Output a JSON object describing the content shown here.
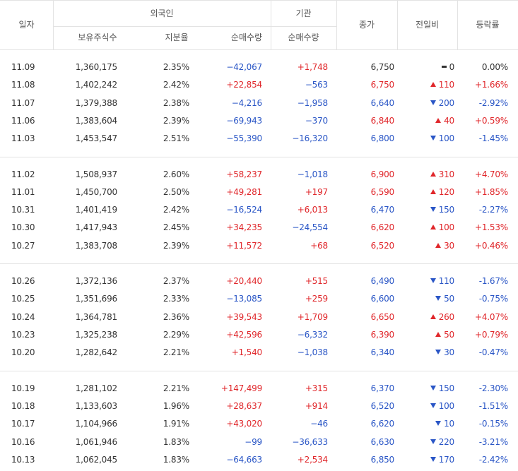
{
  "table": {
    "headers": {
      "date": "일자",
      "foreign": "외국인",
      "institution": "기관",
      "close": "종가",
      "change": "전일비",
      "rate": "등락률",
      "holdings": "보유주식수",
      "share": "지분율",
      "foreign_net": "순매수량",
      "inst_net": "순매수량"
    },
    "groups": [
      [
        {
          "cells": [
            "11.09",
            "1,360,175",
            "2.35%",
            "−42,067",
            "+1,748",
            "6,750",
            "0",
            "0.00%"
          ],
          "dir": "flat"
        },
        {
          "cells": [
            "11.08",
            "1,402,242",
            "2.42%",
            "+22,854",
            "−563",
            "6,750",
            "110",
            "+1.66%"
          ],
          "dir": "up"
        },
        {
          "cells": [
            "11.07",
            "1,379,388",
            "2.38%",
            "−4,216",
            "−1,958",
            "6,640",
            "200",
            "-2.92%"
          ],
          "dir": "down"
        },
        {
          "cells": [
            "11.06",
            "1,383,604",
            "2.39%",
            "−69,943",
            "−370",
            "6,840",
            "40",
            "+0.59%"
          ],
          "dir": "up"
        },
        {
          "cells": [
            "11.03",
            "1,453,547",
            "2.51%",
            "−55,390",
            "−16,320",
            "6,800",
            "100",
            "-1.45%"
          ],
          "dir": "down"
        }
      ],
      [
        {
          "cells": [
            "11.02",
            "1,508,937",
            "2.60%",
            "+58,237",
            "−1,018",
            "6,900",
            "310",
            "+4.70%"
          ],
          "dir": "up"
        },
        {
          "cells": [
            "11.01",
            "1,450,700",
            "2.50%",
            "+49,281",
            "+197",
            "6,590",
            "120",
            "+1.85%"
          ],
          "dir": "up"
        },
        {
          "cells": [
            "10.31",
            "1,401,419",
            "2.42%",
            "−16,524",
            "+6,013",
            "6,470",
            "150",
            "-2.27%"
          ],
          "dir": "down"
        },
        {
          "cells": [
            "10.30",
            "1,417,943",
            "2.45%",
            "+34,235",
            "−24,554",
            "6,620",
            "100",
            "+1.53%"
          ],
          "dir": "up"
        },
        {
          "cells": [
            "10.27",
            "1,383,708",
            "2.39%",
            "+11,572",
            "+68",
            "6,520",
            "30",
            "+0.46%"
          ],
          "dir": "up"
        }
      ],
      [
        {
          "cells": [
            "10.26",
            "1,372,136",
            "2.37%",
            "+20,440",
            "+515",
            "6,490",
            "110",
            "-1.67%"
          ],
          "dir": "down"
        },
        {
          "cells": [
            "10.25",
            "1,351,696",
            "2.33%",
            "−13,085",
            "+259",
            "6,600",
            "50",
            "-0.75%"
          ],
          "dir": "down"
        },
        {
          "cells": [
            "10.24",
            "1,364,781",
            "2.36%",
            "+39,543",
            "+1,709",
            "6,650",
            "260",
            "+4.07%"
          ],
          "dir": "up"
        },
        {
          "cells": [
            "10.23",
            "1,325,238",
            "2.29%",
            "+42,596",
            "−6,332",
            "6,390",
            "50",
            "+0.79%"
          ],
          "dir": "up"
        },
        {
          "cells": [
            "10.20",
            "1,282,642",
            "2.21%",
            "+1,540",
            "−1,038",
            "6,340",
            "30",
            "-0.47%"
          ],
          "dir": "down"
        }
      ],
      [
        {
          "cells": [
            "10.19",
            "1,281,102",
            "2.21%",
            "+147,499",
            "+315",
            "6,370",
            "150",
            "-2.30%"
          ],
          "dir": "down"
        },
        {
          "cells": [
            "10.18",
            "1,133,603",
            "1.96%",
            "+28,637",
            "+914",
            "6,520",
            "100",
            "-1.51%"
          ],
          "dir": "down"
        },
        {
          "cells": [
            "10.17",
            "1,104,966",
            "1.91%",
            "+43,020",
            "−46",
            "6,620",
            "10",
            "-0.15%"
          ],
          "dir": "down"
        },
        {
          "cells": [
            "10.16",
            "1,061,946",
            "1.83%",
            "−99",
            "−36,633",
            "6,630",
            "220",
            "-3.21%"
          ],
          "dir": "down"
        },
        {
          "cells": [
            "10.13",
            "1,062,045",
            "1.83%",
            "−64,663",
            "+2,534",
            "6,850",
            "170",
            "-2.42%"
          ],
          "dir": "down"
        }
      ]
    ]
  }
}
